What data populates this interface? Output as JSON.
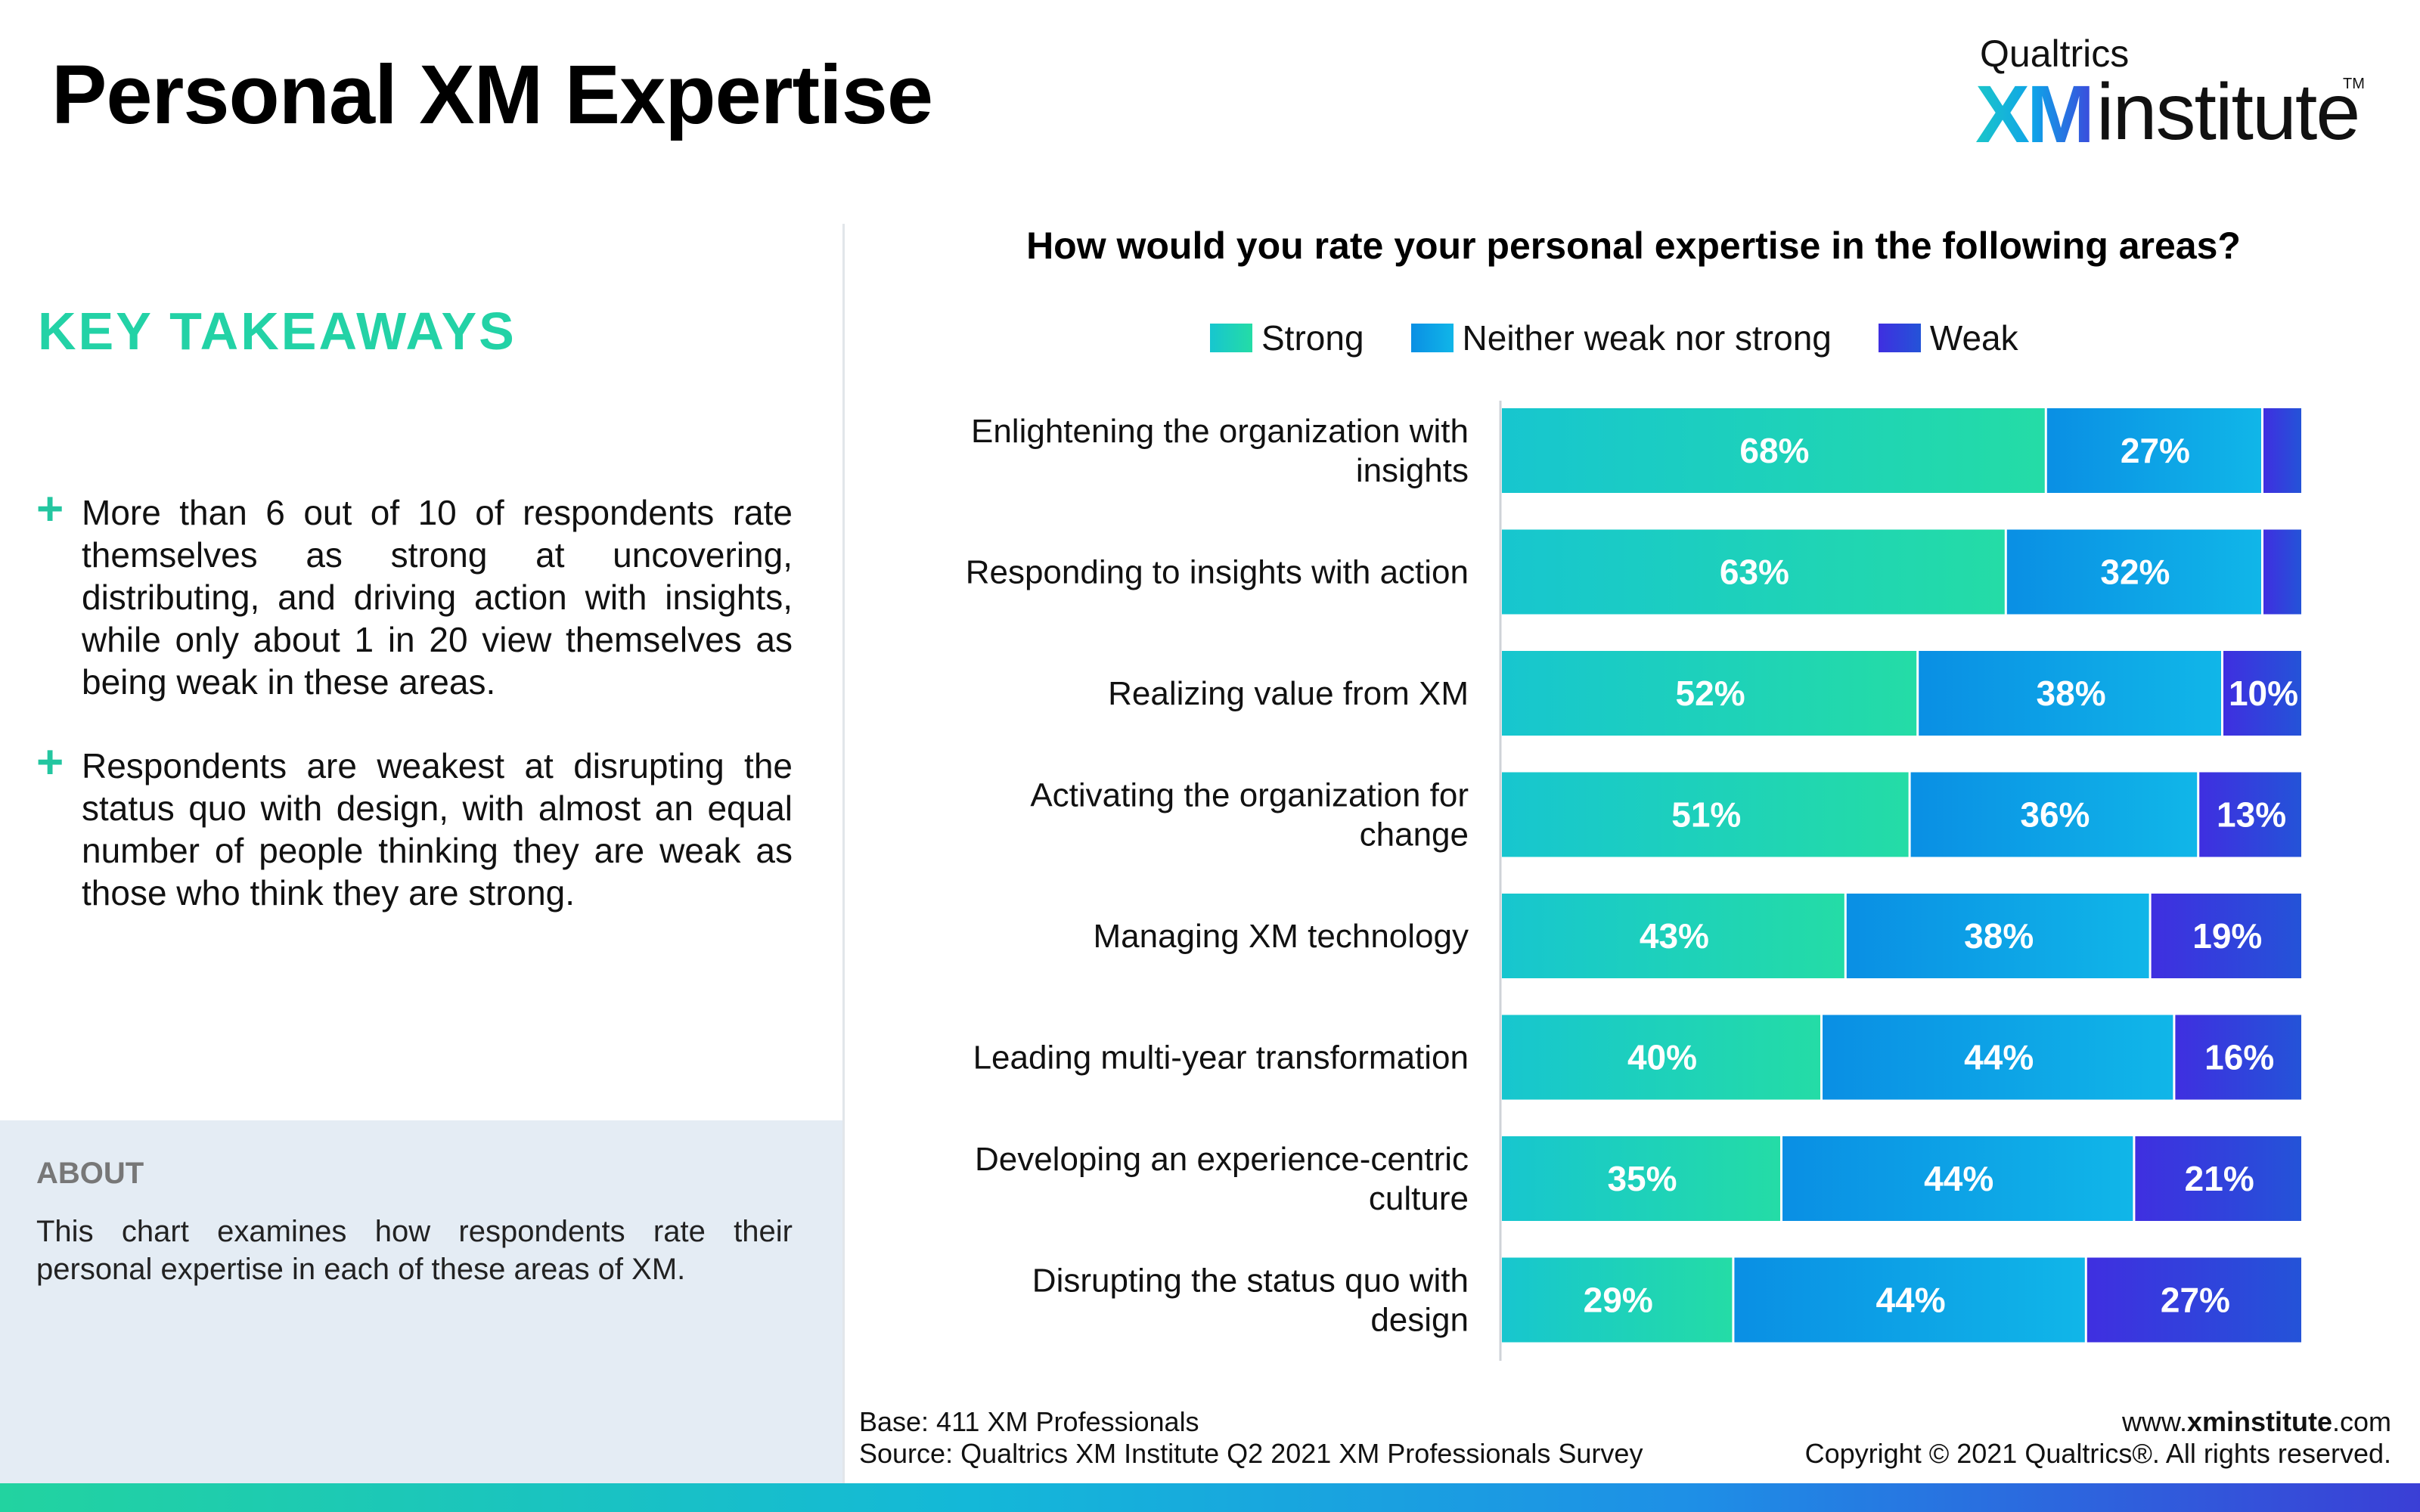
{
  "header": {
    "title": "Personal XM Expertise",
    "logo": {
      "brand": "Qualtrics",
      "xm": "XM",
      "institute": "institute",
      "tm": "TM"
    }
  },
  "takeaways": {
    "heading": "KEY TAKEAWAYS",
    "items": [
      "More than 6 out of 10 of respondents rate themselves as strong at uncovering, distributing, and driving action with insights, while only about 1 in 20 view themselves as being weak in these areas.",
      "Respondents are weakest at disrupting the status quo with design, with almost an equal number of people thinking they are weak as those who think they are strong."
    ]
  },
  "about": {
    "heading": "ABOUT",
    "text": "This chart examines how respondents rate their personal expertise in each of these areas of XM."
  },
  "colors": {
    "strong": [
      "#17c6cf",
      "#24dca6"
    ],
    "neither": [
      "#0a8fe4",
      "#10b6e8"
    ],
    "weak": [
      "#3f2fe0",
      "#2453d8"
    ],
    "accent": "#23d2a6"
  },
  "chart_data": {
    "type": "bar",
    "orientation": "horizontal",
    "stacked": true,
    "title": "How would you rate your personal expertise in the following areas?",
    "legend_position": "top",
    "categories": [
      "Enlightening the organization with insights",
      "Responding to insights with action",
      "Realizing value from XM",
      "Activating the organization for change",
      "Managing XM technology",
      "Leading multi-year transformation",
      "Developing an experience-centric culture",
      "Disrupting the status quo with design"
    ],
    "series": [
      {
        "name": "Strong",
        "key": "strong",
        "values": [
          68,
          63,
          52,
          51,
          43,
          40,
          35,
          29
        ],
        "labels": [
          "68%",
          "63%",
          "52%",
          "51%",
          "43%",
          "40%",
          "35%",
          "29%"
        ]
      },
      {
        "name": "Neither weak nor strong",
        "key": "neither",
        "values": [
          27,
          32,
          38,
          36,
          38,
          44,
          44,
          44
        ],
        "labels": [
          "27%",
          "32%",
          "38%",
          "36%",
          "38%",
          "44%",
          "44%",
          "44%"
        ]
      },
      {
        "name": "Weak",
        "key": "weak",
        "values": [
          5,
          5,
          10,
          13,
          19,
          16,
          21,
          27
        ],
        "labels": [
          "",
          "",
          "10%",
          "13%",
          "19%",
          "16%",
          "21%",
          "27%"
        ]
      }
    ],
    "xlim": [
      0,
      100
    ]
  },
  "footer": {
    "base": "Base: 411 XM Professionals",
    "source": "Source: Qualtrics XM Institute Q2 2021 XM Professionals Survey",
    "url_prefix": "www.",
    "url_bold": "xminstitute",
    "url_suffix": ".com",
    "copyright": "Copyright © 2021 Qualtrics®. All rights reserved."
  }
}
